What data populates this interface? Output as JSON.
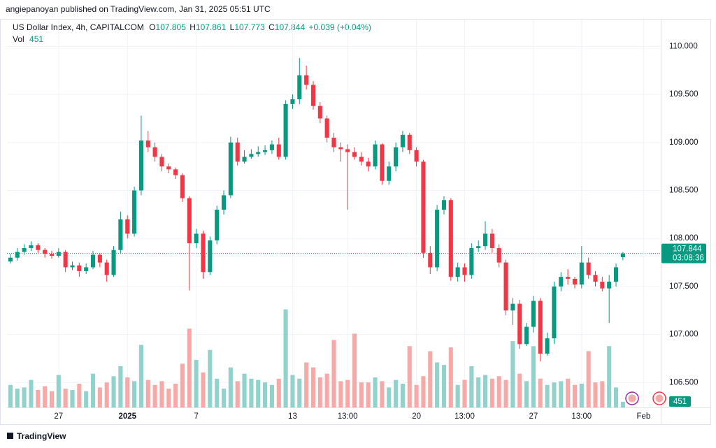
{
  "header": {
    "publisher": "angiepanoyan published on TradingView.com, Jan 31, 2025 05:51 UTC"
  },
  "chart_data": {
    "type": "candlestick",
    "title": "US Dollar Index, 4h, CAPITALCOM",
    "legend": {
      "o_label": "O",
      "o": 107.805,
      "h_label": "H",
      "h": 107.861,
      "l_label": "L",
      "l": 107.773,
      "c_label": "C",
      "c": 107.844,
      "change": "+0.039 (+0.04%)",
      "vol_label": "Vol",
      "vol": 451
    },
    "last_price": {
      "value": 107.844,
      "countdown": "03:08:36"
    },
    "categories": [
      null,
      null,
      null,
      null,
      null,
      null,
      null,
      "27",
      null,
      null,
      null,
      null,
      null,
      null,
      null,
      null,
      null,
      "2025",
      null,
      null,
      null,
      null,
      null,
      null,
      null,
      null,
      null,
      "7",
      null,
      null,
      null,
      null,
      null,
      null,
      null,
      null,
      null,
      null,
      null,
      null,
      null,
      "13",
      null,
      null,
      null,
      null,
      null,
      null,
      null,
      "13:00",
      null,
      null,
      null,
      null,
      null,
      null,
      null,
      null,
      null,
      "20",
      null,
      null,
      null,
      null,
      null,
      null,
      "13:00",
      null,
      null,
      null,
      null,
      null,
      null,
      null,
      null,
      null,
      "27",
      null,
      null,
      null,
      null,
      null,
      null,
      "13:00",
      null,
      null,
      null,
      null,
      null,
      null,
      null,
      null,
      "Feb",
      null,
      null
    ],
    "open": [
      107.76,
      107.8,
      107.86,
      107.9,
      107.93,
      107.88,
      107.84,
      107.82,
      107.86,
      107.7,
      107.72,
      107.66,
      107.7,
      107.83,
      107.75,
      107.62,
      107.88,
      108.2,
      108.05,
      108.5,
      109.02,
      108.95,
      108.85,
      108.75,
      108.72,
      108.66,
      108.42,
      107.95,
      108.05,
      107.65,
      107.98,
      108.3,
      108.45,
      109.0,
      108.8,
      108.85,
      108.88,
      108.9,
      108.92,
      108.98,
      108.85,
      109.4,
      109.45,
      109.7,
      109.6,
      109.38,
      109.25,
      109.05,
      108.95,
      108.93,
      108.9,
      108.85,
      108.8,
      108.75,
      108.98,
      108.6,
      108.75,
      108.95,
      109.08,
      108.92,
      108.8,
      107.85,
      107.7,
      108.3,
      108.4,
      107.6,
      107.7,
      107.62,
      107.9,
      107.92,
      108.05,
      107.9,
      107.75,
      107.25,
      107.32,
      106.9,
      107.08,
      107.35,
      106.8,
      106.96,
      107.5,
      107.6,
      107.58,
      107.52,
      107.75,
      107.62,
      107.55,
      107.48,
      107.55,
      107.805,
      null,
      null,
      null,
      null,
      null
    ],
    "high": [
      107.84,
      107.9,
      107.94,
      107.97,
      107.95,
      107.9,
      107.87,
      107.9,
      107.88,
      107.76,
      107.75,
      107.74,
      107.87,
      107.85,
      107.78,
      107.92,
      108.28,
      108.24,
      108.54,
      109.28,
      109.12,
      109.0,
      108.88,
      108.78,
      108.74,
      108.68,
      108.44,
      108.1,
      108.08,
      108.02,
      108.34,
      108.5,
      109.06,
      109.05,
      108.92,
      108.93,
      108.96,
      108.97,
      109.02,
      109.05,
      109.44,
      109.5,
      109.88,
      109.8,
      109.64,
      109.42,
      109.28,
      109.1,
      109.0,
      108.98,
      108.95,
      108.9,
      108.84,
      109.02,
      108.99,
      108.8,
      109.0,
      109.12,
      109.1,
      108.95,
      108.82,
      107.92,
      108.35,
      108.44,
      108.42,
      107.75,
      107.74,
      107.95,
      107.98,
      108.18,
      108.1,
      107.94,
      107.78,
      107.38,
      107.36,
      107.12,
      107.4,
      107.38,
      107.02,
      107.55,
      107.65,
      107.68,
      107.6,
      107.92,
      107.8,
      107.66,
      107.6,
      107.62,
      107.74,
      107.861,
      null,
      null,
      null,
      null,
      null
    ],
    "low": [
      107.74,
      107.77,
      107.83,
      107.87,
      107.85,
      107.8,
      107.79,
      107.8,
      107.65,
      107.67,
      107.6,
      107.63,
      107.68,
      107.7,
      107.55,
      107.6,
      107.85,
      108.0,
      108.02,
      108.45,
      108.9,
      108.8,
      108.7,
      108.68,
      108.62,
      108.38,
      107.46,
      107.9,
      107.58,
      107.62,
      107.94,
      108.25,
      108.42,
      108.76,
      108.78,
      108.83,
      108.85,
      108.87,
      108.88,
      108.82,
      108.82,
      109.35,
      109.4,
      109.55,
      109.34,
      109.2,
      109.0,
      108.9,
      108.8,
      108.3,
      108.82,
      108.76,
      108.7,
      108.72,
      108.56,
      108.56,
      108.7,
      108.9,
      108.88,
      108.75,
      107.8,
      107.63,
      107.66,
      108.25,
      107.56,
      107.55,
      107.55,
      107.58,
      107.86,
      107.88,
      107.85,
      107.7,
      107.2,
      107.1,
      106.85,
      106.88,
      107.02,
      106.72,
      106.78,
      106.9,
      107.45,
      107.52,
      107.48,
      107.48,
      107.58,
      107.5,
      107.45,
      107.12,
      107.5,
      107.773,
      null,
      null,
      null,
      null,
      null
    ],
    "close": [
      107.8,
      107.86,
      107.9,
      107.93,
      107.88,
      107.84,
      107.82,
      107.86,
      107.7,
      107.72,
      107.66,
      107.7,
      107.83,
      107.75,
      107.62,
      107.88,
      108.2,
      108.05,
      108.5,
      109.02,
      108.95,
      108.85,
      108.75,
      108.72,
      108.66,
      108.42,
      107.95,
      108.05,
      107.65,
      107.98,
      108.3,
      108.45,
      109.0,
      108.8,
      108.85,
      108.88,
      108.9,
      108.92,
      108.98,
      108.85,
      109.4,
      109.45,
      109.7,
      109.6,
      109.38,
      109.25,
      109.05,
      108.95,
      108.93,
      108.9,
      108.85,
      108.8,
      108.75,
      108.98,
      108.6,
      108.75,
      108.95,
      109.08,
      108.92,
      108.8,
      107.85,
      107.7,
      108.3,
      108.4,
      107.6,
      107.7,
      107.62,
      107.9,
      107.92,
      108.05,
      107.9,
      107.75,
      107.25,
      107.32,
      106.9,
      107.08,
      107.35,
      106.8,
      106.96,
      107.5,
      107.6,
      107.58,
      107.52,
      107.75,
      107.62,
      107.55,
      107.48,
      107.55,
      107.7,
      107.844,
      null,
      null,
      null,
      null,
      null
    ],
    "volume": [
      1800,
      1500,
      1600,
      2200,
      1400,
      1700,
      1300,
      2600,
      1500,
      1400,
      1900,
      1300,
      2700,
      1600,
      2000,
      2500,
      3300,
      2400,
      2100,
      5000,
      2200,
      1800,
      2100,
      1500,
      1900,
      3500,
      6300,
      3800,
      2800,
      4600,
      2300,
      1500,
      3200,
      2100,
      2700,
      2300,
      2200,
      2000,
      1800,
      2300,
      7840,
      2600,
      2300,
      3600,
      3200,
      2400,
      2700,
      5400,
      2100,
      2200,
      5900,
      2000,
      2000,
      2400,
      2100,
      1600,
      2200,
      1900,
      4900,
      1800,
      2500,
      4500,
      3600,
      3400,
      4800,
      1800,
      2200,
      3300,
      2400,
      2600,
      2300,
      2500,
      2200,
      5300,
      2700,
      2100,
      4900,
      2300,
      1800,
      2000,
      2100,
      2300,
      1800,
      1900,
      4500,
      2000,
      2100,
      4900,
      1600,
      451,
      null,
      null,
      null,
      null,
      null
    ],
    "up_color": "#089981",
    "down_color": "#f23645",
    "volume_up_color": "#92d2cc",
    "volume_down_color": "#f7a9a7",
    "ylim": [
      106.24,
      110.28
    ],
    "yticks": [
      {
        "value": 106.5,
        "label": "106.500"
      },
      {
        "value": 107,
        "label": "107.000"
      },
      {
        "value": 107.5,
        "label": "107.500"
      },
      {
        "value": 108,
        "label": "108.000"
      },
      {
        "value": 108.5,
        "label": "108.500"
      },
      {
        "value": 109,
        "label": "109.000"
      },
      {
        "value": 109.5,
        "label": "109.500"
      },
      {
        "value": 110,
        "label": "110.000"
      }
    ],
    "volume_lim": [
      0,
      8100
    ],
    "grid": true
  },
  "footer": {
    "brand": "TradingView"
  }
}
